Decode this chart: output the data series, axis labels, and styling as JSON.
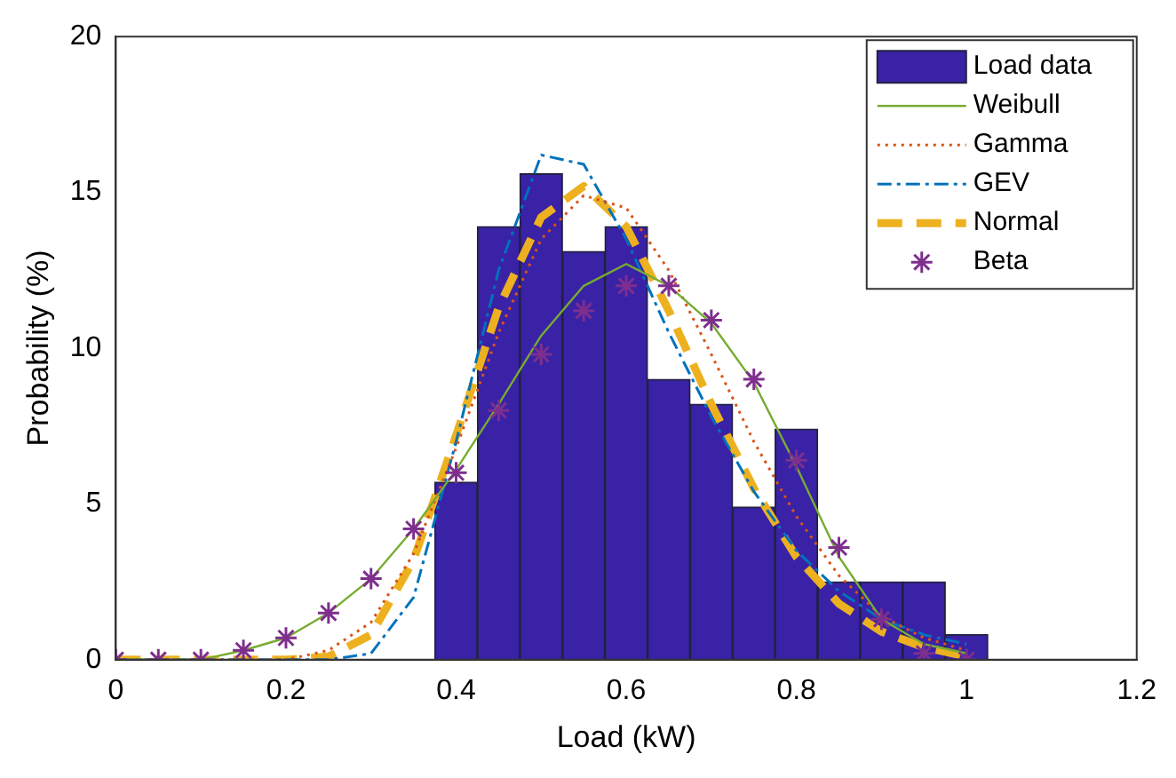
{
  "chart_data": {
    "type": "histogram",
    "xlabel": "Load (kW)",
    "ylabel": "Probability (%)",
    "xlim": [
      0,
      1.2
    ],
    "xticks": [
      0,
      0.2,
      0.4,
      0.6,
      0.8,
      1,
      1.2
    ],
    "ylim": [
      0,
      20
    ],
    "yticks": [
      0,
      5,
      10,
      15,
      20
    ],
    "grid": false,
    "legend": "top right",
    "series": [
      {
        "name": "Load data",
        "color": "#3a22a6",
        "bins": [
          0.375,
          0.425,
          0.475,
          0.525,
          0.575,
          0.625,
          0.675,
          0.725,
          0.775,
          0.825,
          0.875,
          0.925,
          0.975,
          1.025
        ],
        "values": [
          5.7,
          13.9,
          15.6,
          13.1,
          13.9,
          9.0,
          8.2,
          4.9,
          7.4,
          2.5,
          2.5,
          2.5,
          0.8
        ]
      },
      {
        "name": "Weibull",
        "type": "line",
        "color": "#77ac30",
        "line_style": "solid",
        "marker": "none",
        "x": [
          0,
          0.1,
          0.15,
          0.2,
          0.25,
          0.3,
          0.35,
          0.4,
          0.45,
          0.5,
          0.55,
          0.6,
          0.65,
          0.7,
          0.75,
          0.8,
          0.85,
          0.9,
          0.95,
          1.0
        ],
        "values": [
          0,
          0,
          0.3,
          0.7,
          1.5,
          2.6,
          4.2,
          6.1,
          8.2,
          10.4,
          12.0,
          12.7,
          12.0,
          10.8,
          8.9,
          6.2,
          3.3,
          1.3,
          0.5,
          0.2
        ]
      },
      {
        "name": "Gamma",
        "type": "line",
        "color": "#d95319",
        "line_style": "dotted",
        "marker": "none",
        "x": [
          0,
          0.2,
          0.25,
          0.3,
          0.35,
          0.4,
          0.45,
          0.5,
          0.55,
          0.6,
          0.65,
          0.7,
          0.75,
          0.8,
          0.85,
          0.9,
          0.95,
          1.0
        ],
        "values": [
          0,
          0,
          0.3,
          1.2,
          3.4,
          6.8,
          10.5,
          13.5,
          14.9,
          14.5,
          12.5,
          9.8,
          7.0,
          4.6,
          2.7,
          1.4,
          0.7,
          0.3
        ]
      },
      {
        "name": "GEV",
        "type": "line",
        "color": "#0072bd",
        "line_style": "dashdot",
        "marker": "none",
        "x": [
          0,
          0.25,
          0.3,
          0.35,
          0.4,
          0.45,
          0.5,
          0.55,
          0.6,
          0.65,
          0.7,
          0.75,
          0.8,
          0.85,
          0.9,
          0.95,
          1.0
        ],
        "values": [
          0,
          0,
          0.2,
          2.0,
          7.0,
          12.5,
          16.2,
          15.9,
          13.5,
          10.5,
          7.8,
          5.4,
          3.5,
          2.2,
          1.3,
          0.8,
          0.5
        ]
      },
      {
        "name": "Normal",
        "type": "line",
        "color": "#edb120",
        "line_style": "dashed",
        "marker": "none",
        "x": [
          0,
          0.2,
          0.25,
          0.3,
          0.35,
          0.4,
          0.45,
          0.5,
          0.55,
          0.6,
          0.65,
          0.7,
          0.75,
          0.8,
          0.85,
          0.9,
          0.95,
          1.0
        ],
        "values": [
          0,
          0,
          0.1,
          0.8,
          3.2,
          7.2,
          11.3,
          14.2,
          15.2,
          13.9,
          11.2,
          8.2,
          5.5,
          3.3,
          1.8,
          0.9,
          0.4,
          0.1
        ]
      },
      {
        "name": "Beta",
        "type": "scatter",
        "color": "#7e2f8e",
        "marker": "cross",
        "x": [
          0,
          0.05,
          0.1,
          0.15,
          0.2,
          0.25,
          0.3,
          0.35,
          0.4,
          0.45,
          0.5,
          0.55,
          0.6,
          0.65,
          0.7,
          0.75,
          0.8,
          0.85,
          0.9,
          0.95,
          1.0
        ],
        "values": [
          0,
          0,
          0,
          0.3,
          0.7,
          1.5,
          2.6,
          4.2,
          6.0,
          8.0,
          9.8,
          11.2,
          12.0,
          12.0,
          10.9,
          9.0,
          6.4,
          3.6,
          1.3,
          0.2,
          0
        ]
      }
    ]
  }
}
